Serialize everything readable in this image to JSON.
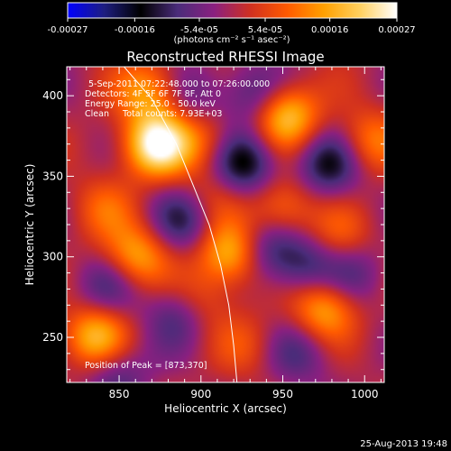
{
  "chart_data": {
    "type": "heatmap",
    "title": "Reconstructed RHESSI Image",
    "xlabel": "Heliocentric X (arcsec)",
    "ylabel": "Heliocentric Y (arcsec)",
    "xlim": [
      818,
      1012
    ],
    "ylim": [
      222,
      418
    ],
    "x_ticks": [
      850,
      900,
      950,
      1000
    ],
    "y_ticks": [
      250,
      300,
      350,
      400
    ],
    "colorbar": {
      "range": [
        -0.00027,
        0.00027
      ],
      "ticks": [
        "-0.00027",
        "-0.00016",
        "-5.4e-05",
        "5.4e-05",
        "0.00016",
        "0.00027"
      ],
      "units_label": "(photons cm⁻² s⁻¹ asec⁻²)",
      "colors": [
        "#0000ff",
        "#1e1e80",
        "#000000",
        "#4a2c7a",
        "#8a2080",
        "#d03020",
        "#ff5a00",
        "#ffa000",
        "#ffd060",
        "#ffffff"
      ]
    },
    "annotations": {
      "time_range": "5-Sep-2011 07:22:48.000 to 07:26:00.000",
      "detectors": "Detectors: 4F 5F 6F 7F 8F, Att 0",
      "energy": "Energy Range: 25.0 - 50.0 keV",
      "clean": "Clean     Total counts: 7.93E+03",
      "peak": "Position of Peak = [873,370]"
    },
    "limb_curve": [
      [
        853,
        418
      ],
      [
        870,
        398
      ],
      [
        885,
        370
      ],
      [
        895,
        345
      ],
      [
        905,
        320
      ],
      [
        912,
        295
      ],
      [
        917,
        270
      ],
      [
        920,
        245
      ],
      [
        922,
        222
      ]
    ],
    "sources": [
      {
        "x": 873,
        "y": 370,
        "value": 0.00027
      },
      {
        "x": 952,
        "y": 388,
        "value": 0.0002
      },
      {
        "x": 868,
        "y": 403,
        "value": 0.00014
      },
      {
        "x": 918,
        "y": 302,
        "value": 0.00019
      },
      {
        "x": 860,
        "y": 300,
        "value": 0.00016
      },
      {
        "x": 835,
        "y": 250,
        "value": 0.00018
      },
      {
        "x": 975,
        "y": 268,
        "value": 0.00016
      },
      {
        "x": 950,
        "y": 330,
        "value": 0.00012
      },
      {
        "x": 1003,
        "y": 372,
        "value": 0.00011
      },
      {
        "x": 903,
        "y": 372,
        "value": 9e-05
      },
      {
        "x": 898,
        "y": 272,
        "value": 9e-05
      },
      {
        "x": 840,
        "y": 330,
        "value": 8e-05
      },
      {
        "x": 985,
        "y": 312,
        "value": 8e-05
      },
      {
        "x": 928,
        "y": 245,
        "value": 6e-05
      },
      {
        "x": 905,
        "y": 336,
        "value": 6e-05
      },
      {
        "x": 926,
        "y": 358,
        "value": -0.00016
      },
      {
        "x": 978,
        "y": 357,
        "value": -0.00014
      },
      {
        "x": 940,
        "y": 305,
        "value": -0.00011
      },
      {
        "x": 963,
        "y": 295,
        "value": -0.00011
      },
      {
        "x": 890,
        "y": 323,
        "value": -0.00012
      },
      {
        "x": 887,
        "y": 265,
        "value": -0.00011
      },
      {
        "x": 843,
        "y": 282,
        "value": -9e-05
      },
      {
        "x": 848,
        "y": 228,
        "value": -9e-05
      },
      {
        "x": 933,
        "y": 400,
        "value": -0.0001
      },
      {
        "x": 993,
        "y": 290,
        "value": -8e-05
      },
      {
        "x": 897,
        "y": 400,
        "value": -7e-05
      },
      {
        "x": 960,
        "y": 240,
        "value": -8e-05
      }
    ]
  },
  "footer": {
    "timestamp": "25-Aug-2013 19:48"
  }
}
